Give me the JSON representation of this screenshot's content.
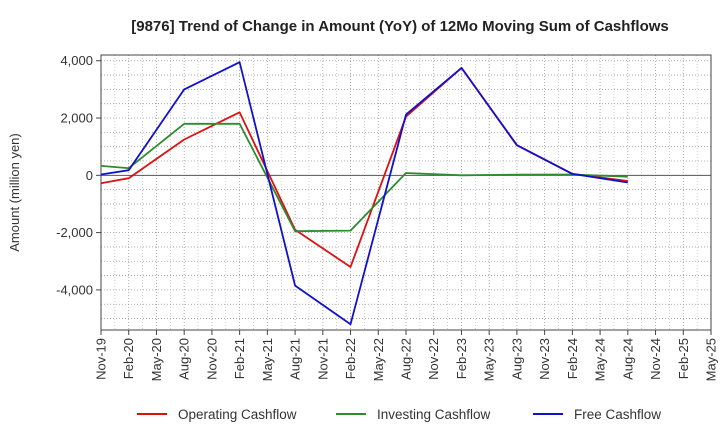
{
  "chart_data": {
    "type": "line",
    "title": "[9876]  Trend of Change in Amount (YoY) of 12Mo Moving Sum of Cashflows",
    "xlabel": "",
    "ylabel": "Amount (million yen)",
    "ylim": [
      -5400,
      4200
    ],
    "yticks": [
      -4000,
      -2000,
      0,
      2000,
      4000
    ],
    "ytick_labels": [
      "-4,000",
      "-2,000",
      "0",
      "2,000",
      "4,000"
    ],
    "grid": true,
    "legend_position": "bottom",
    "categories": [
      "Nov-19",
      "Feb-20",
      "May-20",
      "Aug-20",
      "Nov-20",
      "Feb-21",
      "May-21",
      "Aug-21",
      "Nov-21",
      "Feb-22",
      "May-22",
      "Aug-22",
      "Nov-22",
      "Feb-23",
      "May-23",
      "Aug-23",
      "Nov-23",
      "Feb-24",
      "May-24",
      "Aug-24",
      "Nov-24",
      "Feb-25",
      "May-25"
    ],
    "series": [
      {
        "name": "Operating Cashflow",
        "color": "#dd1111",
        "values": [
          -280,
          -100,
          null,
          1250,
          null,
          2200,
          null,
          -1900,
          null,
          -3200,
          null,
          2050,
          null,
          3750,
          null,
          1050,
          null,
          50,
          null,
          -200,
          null,
          null,
          null
        ]
      },
      {
        "name": "Investing Cashflow",
        "color": "#2e8b2e",
        "values": [
          330,
          250,
          null,
          1800,
          null,
          1800,
          null,
          -1950,
          null,
          -1930,
          null,
          80,
          null,
          0,
          null,
          20,
          null,
          30,
          null,
          -50,
          null,
          null,
          null
        ]
      },
      {
        "name": "Free Cashflow",
        "color": "#1111cc",
        "values": [
          30,
          180,
          null,
          3000,
          null,
          3950,
          null,
          -3850,
          null,
          -5200,
          null,
          2120,
          null,
          3750,
          null,
          1050,
          null,
          50,
          null,
          -250,
          null,
          null,
          null
        ]
      }
    ]
  }
}
